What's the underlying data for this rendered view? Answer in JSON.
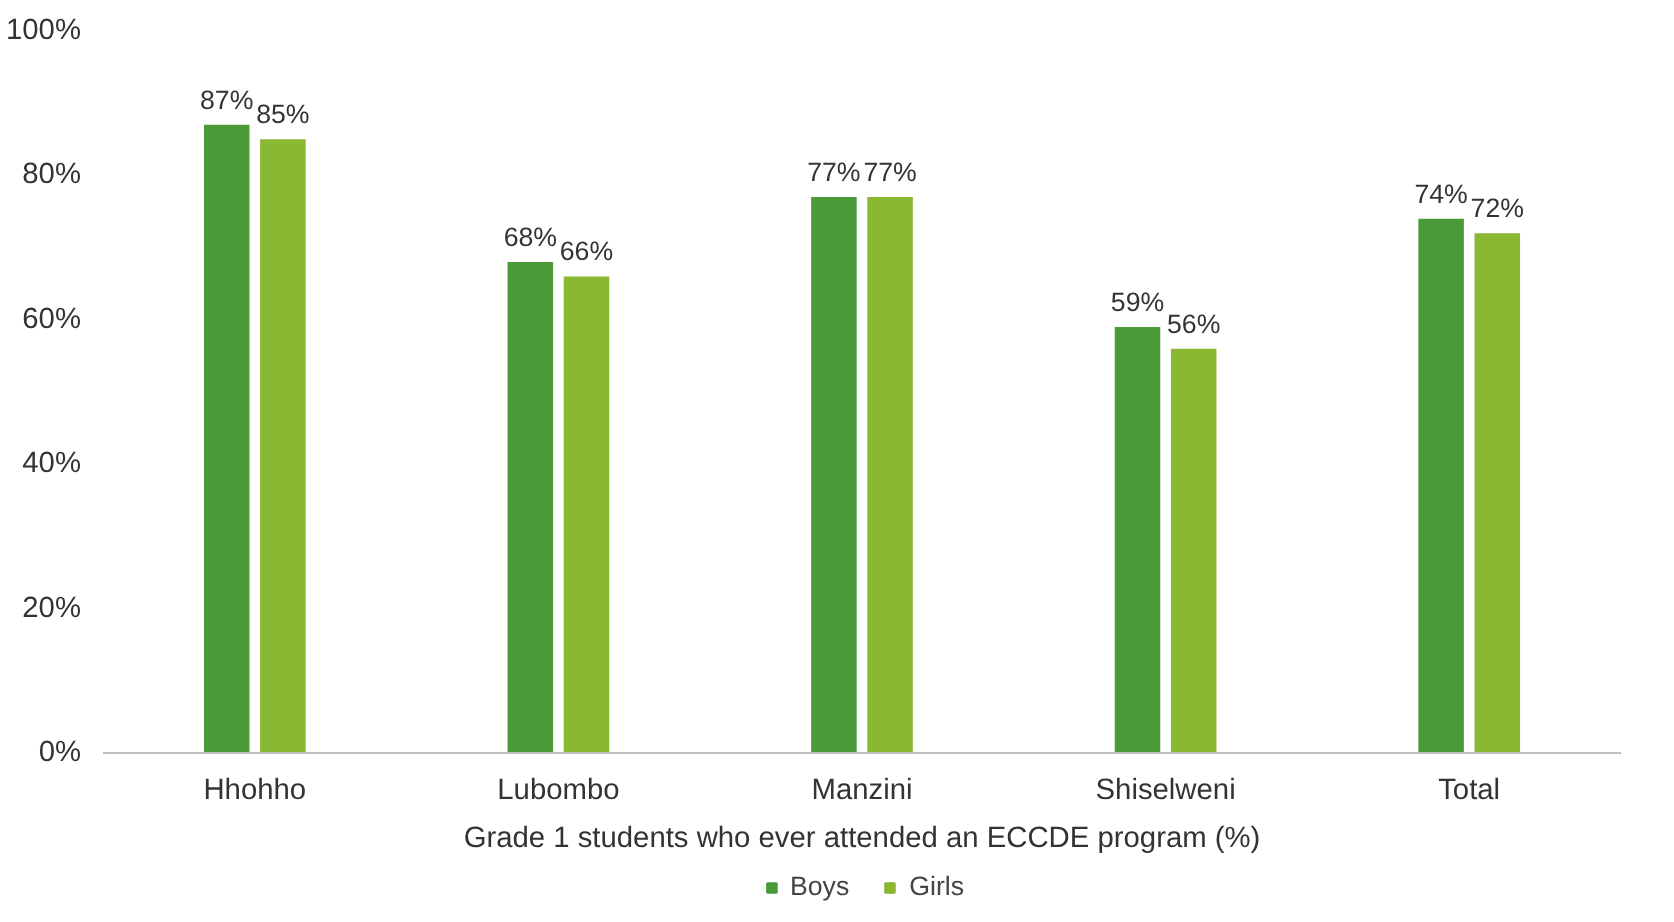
{
  "chart_data": {
    "type": "bar",
    "xlabel": "Grade 1 students who ever attended an ECCDE program (%)",
    "categories": [
      "Hhohho",
      "Lubombo",
      "Manzini",
      "Shiselweni",
      "Total"
    ],
    "series": [
      {
        "name": "Boys",
        "color": "#4a9a3a",
        "values": [
          87,
          68,
          77,
          59,
          74
        ],
        "value_labels": [
          "87%",
          "68%",
          "77%",
          "59%",
          "74%"
        ]
      },
      {
        "name": "Girls",
        "color": "#8ab833",
        "values": [
          85,
          66,
          77,
          56,
          72
        ],
        "value_labels": [
          "85%",
          "66%",
          "77%",
          "56%",
          "72%"
        ]
      }
    ],
    "ylim": [
      0,
      100
    ],
    "yticks": [
      {
        "value": 0,
        "label": "0%"
      },
      {
        "value": 20,
        "label": "20%"
      },
      {
        "value": 40,
        "label": "40%"
      },
      {
        "value": 60,
        "label": "60%"
      },
      {
        "value": 80,
        "label": "80%"
      },
      {
        "value": 100,
        "label": "100%"
      }
    ],
    "grid": false,
    "legend": "bottom"
  }
}
